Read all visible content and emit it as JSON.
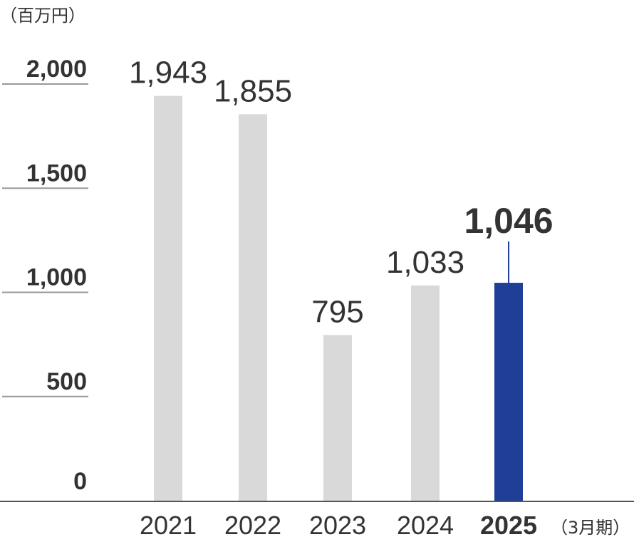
{
  "chart_data": {
    "type": "bar",
    "y_unit_label": "（百万円）",
    "x_unit_label": "（3月期）",
    "categories": [
      "2021",
      "2022",
      "2023",
      "2024",
      "2025"
    ],
    "values": [
      1943,
      1855,
      795,
      1033,
      1046
    ],
    "value_labels": [
      "1,943",
      "1,855",
      "795",
      "1,033",
      "1,046"
    ],
    "highlight_index": 4,
    "ylim": [
      0,
      2000
    ],
    "yticks": [
      0,
      500,
      1000,
      1500,
      2000
    ],
    "ytick_labels": [
      "0",
      "500",
      "1,000",
      "1,500",
      "2,000"
    ],
    "colors": {
      "bar": "#d9d9d9",
      "highlight_bar": "#1f3f96",
      "highlight_text": "#1f3f96",
      "text": "#333333",
      "gridline": "#999999",
      "axis": "#555555"
    }
  }
}
